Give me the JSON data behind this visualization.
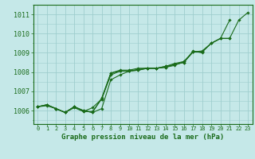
{
  "title": "Graphe pression niveau de la mer (hPa)",
  "ytick_labels": [
    "1006",
    "1007",
    "1008",
    "1009",
    "1010",
    "1011"
  ],
  "yticks": [
    1006,
    1007,
    1008,
    1009,
    1010,
    1011
  ],
  "ylim": [
    1005.3,
    1011.5
  ],
  "xlim": [
    -0.5,
    23.5
  ],
  "background_color": "#c5e8e8",
  "grid_color": "#9fcece",
  "line_color": "#1a6b1a",
  "text_color": "#1a6b1a",
  "series": [
    [
      1006.2,
      1006.3,
      1006.1,
      1005.9,
      1006.2,
      1006.0,
      1005.9,
      1006.1,
      1007.6,
      1007.85,
      1008.05,
      1008.15,
      1008.2,
      1008.2,
      1008.25,
      1008.4,
      1008.5,
      1009.1,
      1009.0,
      null,
      null,
      null,
      null,
      null
    ],
    [
      1006.2,
      1006.3,
      1006.1,
      1005.9,
      1006.2,
      1006.0,
      1005.9,
      1006.65,
      1007.95,
      1008.1,
      1008.1,
      1008.2,
      1008.2,
      1008.2,
      1008.3,
      1008.45,
      1008.55,
      1009.05,
      1009.05,
      1009.5,
      1009.75,
      1010.7,
      null,
      null
    ],
    [
      1006.2,
      1006.3,
      1006.1,
      1005.9,
      1006.15,
      1005.95,
      1006.15,
      1006.6,
      1007.95,
      1008.05,
      1008.05,
      1008.1,
      1008.2,
      1008.2,
      1008.25,
      1008.35,
      1008.55,
      1009.05,
      1009.05,
      1009.5,
      1009.75,
      1009.75,
      null,
      null
    ],
    [
      1006.2,
      1006.25,
      1006.1,
      1005.9,
      1006.2,
      1005.95,
      1005.95,
      1006.6,
      1007.85,
      1008.05,
      1008.05,
      1008.1,
      1008.2,
      1008.2,
      1008.3,
      1008.4,
      1008.5,
      1009.05,
      1009.1,
      1009.5,
      1009.75,
      1009.75,
      1010.7,
      1011.1
    ]
  ]
}
